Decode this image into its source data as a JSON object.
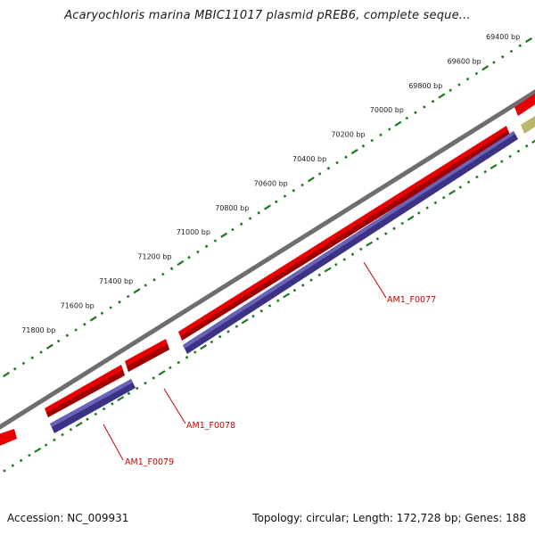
{
  "title": "Acaryochloris marina MBIC11017 plasmid pREB6, complete seque...",
  "footer": {
    "accession": "Accession: NC_009931",
    "summary": "Topology: circular; Length: 172,728 bp; Genes: 188"
  },
  "colors": {
    "backbone": "#808080",
    "forward_feature": "#e60000",
    "cds_feature": "#3c3284",
    "other_feature": "#bdb76b",
    "ticks": "#1e7a1e",
    "gene_label": "#cc0000"
  },
  "ruler": {
    "labels": [
      "69400 bp",
      "69600 bp",
      "69800 bp",
      "70000 bp",
      "70200 bp",
      "70400 bp",
      "70600 bp",
      "70800 bp",
      "71000 bp",
      "71200 bp",
      "71400 bp",
      "71600 bp",
      "71800 bp"
    ]
  },
  "genes": [
    {
      "name": "AM1_F0077"
    },
    {
      "name": "AM1_F0078"
    },
    {
      "name": "AM1_F0079"
    }
  ]
}
